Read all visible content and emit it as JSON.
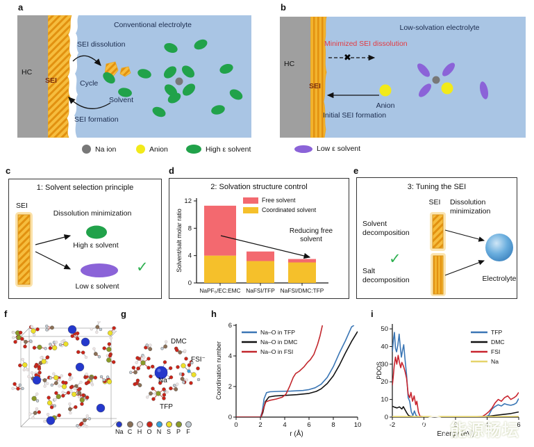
{
  "panels": {
    "a": {
      "label": "a",
      "title": "Conventional electrolyte",
      "hc": "HC",
      "sei": "SEI",
      "sei_dissolution": "SEI dissolution",
      "cycle": "Cycle",
      "solvent": "Solvent",
      "sei_formation": "SEI formation"
    },
    "b": {
      "label": "b",
      "title": "Low-solvation electrolyte",
      "hc": "HC",
      "sei": "SEI",
      "minimized": "Minimized SEI dissolution",
      "anion": "Anion",
      "initial": "Initial SEI formation",
      "cross": "✖"
    },
    "c": {
      "label": "c",
      "title": "1: Solvent selection principle",
      "sei": "SEI",
      "dissolution": "Dissolution minimization",
      "high": "High ε solvent",
      "low": "Low ε solvent",
      "check": "✓"
    },
    "d": {
      "label": "d"
    },
    "e": {
      "label": "e",
      "title": "3: Tuning the SEI",
      "sei": "SEI",
      "dissolution": "Dissolution minimization",
      "solvent_decomp": "Solvent decomposition",
      "salt_decomp": "Salt decomposition",
      "electrolyte": "Electrolyte",
      "check": "✓"
    },
    "f": {
      "label": "f"
    },
    "g": {
      "label": "g",
      "dmc": "DMC",
      "fsi": "FSI⁻",
      "na": "Na⁺",
      "tfp": "TFP",
      "atoms": [
        {
          "symbol": "Na",
          "color": "#2438cc"
        },
        {
          "symbol": "C",
          "color": "#8a6f55"
        },
        {
          "symbol": "H",
          "color": "#ece4e4"
        },
        {
          "symbol": "O",
          "color": "#cc2418"
        },
        {
          "symbol": "N",
          "color": "#35a0dc"
        },
        {
          "symbol": "S",
          "color": "#ede028"
        },
        {
          "symbol": "P",
          "color": "#8a9a28"
        },
        {
          "symbol": "F",
          "color": "#c2ccd4"
        }
      ]
    },
    "h": {
      "label": "h"
    },
    "i": {
      "label": "i"
    }
  },
  "legend_ab": {
    "items": [
      {
        "label": "Na ion",
        "color": "#787878",
        "shape": "circle"
      },
      {
        "label": "Anion",
        "color": "#f2ea1a",
        "shape": "circle"
      },
      {
        "label": "High ε solvent",
        "color": "#21a24a",
        "shape": "oval"
      },
      {
        "label": "Low ε solvent",
        "color": "#8b63d8",
        "shape": "oval2"
      }
    ]
  },
  "chart_data": [
    {
      "id": "d",
      "type": "bar",
      "title": "2: Solvation structure control",
      "ylabel": "Solvent/salt molar ratio",
      "ylim": [
        0,
        12
      ],
      "yticks": [
        0,
        4,
        8,
        12
      ],
      "categories": [
        "NaPF₆/EC:EMC",
        "NaFSI/TFP",
        "NaFSI/DMC:TFP"
      ],
      "series": [
        {
          "name": "Coordinated solvent",
          "color": "#f5c02b",
          "values": [
            4.0,
            3.2,
            3.0
          ]
        },
        {
          "name": "Free solvent",
          "color": "#f3696f",
          "values": [
            7.3,
            1.4,
            0.5
          ]
        }
      ],
      "legend": [
        {
          "label": "Free solvent",
          "color": "#f3696f"
        },
        {
          "label": "Coordinated solvent",
          "color": "#f5c02b"
        }
      ],
      "annotation": "Reducing free solvent"
    },
    {
      "id": "h",
      "type": "line",
      "xlabel": "r (Å)",
      "ylabel": "Coordination number",
      "xlim": [
        0,
        10
      ],
      "ylim": [
        0,
        6
      ],
      "xticks": [
        0,
        2,
        4,
        6,
        8,
        10
      ],
      "yticks": [
        0,
        2,
        4,
        6
      ],
      "legend_position": "top-left",
      "series": [
        {
          "name": "Na–O in TFP",
          "color": "#3a76b5",
          "points": [
            [
              0,
              0
            ],
            [
              2.0,
              0
            ],
            [
              2.15,
              0.35
            ],
            [
              2.3,
              1.2
            ],
            [
              2.5,
              1.6
            ],
            [
              2.8,
              1.66
            ],
            [
              3.5,
              1.68
            ],
            [
              4.5,
              1.7
            ],
            [
              5.5,
              1.74
            ],
            [
              6.0,
              1.8
            ],
            [
              6.5,
              1.92
            ],
            [
              7.0,
              2.15
            ],
            [
              7.5,
              2.6
            ],
            [
              8.0,
              3.3
            ],
            [
              8.5,
              4.2
            ],
            [
              9.0,
              5.0
            ],
            [
              9.5,
              5.9
            ],
            [
              9.7,
              6.0
            ]
          ]
        },
        {
          "name": "Na–O in DMC",
          "color": "#111111",
          "points": [
            [
              0,
              0
            ],
            [
              2.05,
              0
            ],
            [
              2.2,
              0.3
            ],
            [
              2.4,
              1.0
            ],
            [
              2.7,
              1.32
            ],
            [
              3.2,
              1.38
            ],
            [
              4.0,
              1.42
            ],
            [
              5.0,
              1.47
            ],
            [
              6.0,
              1.55
            ],
            [
              6.6,
              1.68
            ],
            [
              7.0,
              1.85
            ],
            [
              7.5,
              2.2
            ],
            [
              8.0,
              2.7
            ],
            [
              8.5,
              3.4
            ],
            [
              9.0,
              4.2
            ],
            [
              9.5,
              4.95
            ],
            [
              10,
              5.6
            ]
          ]
        },
        {
          "name": "Na–O in FSI",
          "color": "#c2262c",
          "points": [
            [
              0,
              0
            ],
            [
              2.05,
              0
            ],
            [
              2.2,
              0.45
            ],
            [
              2.45,
              1.0
            ],
            [
              2.8,
              1.1
            ],
            [
              3.3,
              1.18
            ],
            [
              3.8,
              1.3
            ],
            [
              4.1,
              1.5
            ],
            [
              4.4,
              2.0
            ],
            [
              4.7,
              2.6
            ],
            [
              4.9,
              2.85
            ],
            [
              5.2,
              3.0
            ],
            [
              5.6,
              3.3
            ],
            [
              5.9,
              3.6
            ],
            [
              6.1,
              3.75
            ],
            [
              6.4,
              4.1
            ],
            [
              6.7,
              4.75
            ],
            [
              6.9,
              5.3
            ],
            [
              7.1,
              6.0
            ]
          ]
        }
      ]
    },
    {
      "id": "i",
      "type": "line",
      "xlabel": "Energy (eV)",
      "ylabel": "PDOS",
      "xlim": [
        -2,
        6
      ],
      "ylim": [
        0,
        52
      ],
      "xticks": [
        -2,
        0,
        2,
        4,
        6
      ],
      "yticks": [
        0,
        10,
        20,
        30,
        40,
        50
      ],
      "legend_position": "top-right",
      "series": [
        {
          "name": "TFP",
          "color": "#3a76b5",
          "points": [
            [
              -2,
              37
            ],
            [
              -1.93,
              44
            ],
            [
              -1.87,
              48
            ],
            [
              -1.8,
              39
            ],
            [
              -1.73,
              37
            ],
            [
              -1.65,
              41
            ],
            [
              -1.57,
              47
            ],
            [
              -1.5,
              40
            ],
            [
              -1.43,
              34
            ],
            [
              -1.35,
              38
            ],
            [
              -1.28,
              41
            ],
            [
              -1.2,
              33
            ],
            [
              -1.1,
              24
            ],
            [
              -1.0,
              11
            ],
            [
              -0.9,
              9
            ],
            [
              -0.8,
              3
            ],
            [
              -0.7,
              1
            ],
            [
              -0.6,
              3.5
            ],
            [
              -0.5,
              1
            ],
            [
              -0.4,
              0.3
            ],
            [
              0,
              0.2
            ],
            [
              1,
              0.2
            ],
            [
              2,
              0.2
            ],
            [
              3,
              0.2
            ],
            [
              3.9,
              0.3
            ],
            [
              4.1,
              1
            ],
            [
              4.3,
              4.5
            ],
            [
              4.5,
              6
            ],
            [
              4.7,
              7
            ],
            [
              4.9,
              6.3
            ],
            [
              5.1,
              7.6
            ],
            [
              5.3,
              7
            ],
            [
              5.5,
              6.7
            ],
            [
              5.7,
              7.2
            ],
            [
              5.85,
              8
            ],
            [
              6,
              10.5
            ]
          ]
        },
        {
          "name": "DMC",
          "color": "#111111",
          "points": [
            [
              -2,
              6.2
            ],
            [
              -1.85,
              5.6
            ],
            [
              -1.7,
              5.2
            ],
            [
              -1.55,
              5.8
            ],
            [
              -1.4,
              4.6
            ],
            [
              -1.3,
              5.9
            ],
            [
              -1.2,
              4.2
            ],
            [
              -1.1,
              2.6
            ],
            [
              -1.0,
              1.2
            ],
            [
              -0.9,
              0.6
            ],
            [
              -0.7,
              0.3
            ],
            [
              0,
              0.15
            ],
            [
              1,
              0.15
            ],
            [
              2,
              0.15
            ],
            [
              3,
              0.2
            ],
            [
              4,
              0.4
            ],
            [
              4.5,
              1.0
            ],
            [
              5,
              1.5
            ],
            [
              5.5,
              2.0
            ],
            [
              6,
              2.9
            ]
          ]
        },
        {
          "name": "FSI",
          "color": "#c8242e",
          "points": [
            [
              -2,
              18
            ],
            [
              -1.95,
              22
            ],
            [
              -1.88,
              29
            ],
            [
              -1.8,
              34
            ],
            [
              -1.72,
              30
            ],
            [
              -1.63,
              35
            ],
            [
              -1.55,
              31
            ],
            [
              -1.47,
              28
            ],
            [
              -1.4,
              31
            ],
            [
              -1.3,
              29
            ],
            [
              -1.2,
              26
            ],
            [
              -1.1,
              22
            ],
            [
              -1.0,
              13
            ],
            [
              -0.9,
              11
            ],
            [
              -0.82,
              14
            ],
            [
              -0.72,
              9
            ],
            [
              -0.62,
              12
            ],
            [
              -0.52,
              7
            ],
            [
              -0.45,
              9
            ],
            [
              -0.35,
              3
            ],
            [
              -0.25,
              0.5
            ],
            [
              0,
              0.2
            ],
            [
              1,
              0.2
            ],
            [
              2,
              0.2
            ],
            [
              3,
              0.2
            ],
            [
              3.7,
              0.4
            ],
            [
              3.9,
              1.5
            ],
            [
              4.1,
              3
            ],
            [
              4.3,
              5
            ],
            [
              4.5,
              8
            ],
            [
              4.7,
              10
            ],
            [
              4.9,
              9
            ],
            [
              5.1,
              11
            ],
            [
              5.3,
              12
            ],
            [
              5.5,
              10
            ],
            [
              5.7,
              11
            ],
            [
              5.85,
              12
            ],
            [
              6,
              14
            ]
          ]
        },
        {
          "name": "Na",
          "color": "#e5d36a",
          "points": [
            [
              -2,
              0.3
            ],
            [
              0,
              0.3
            ],
            [
              2,
              0.3
            ],
            [
              4,
              0.3
            ],
            [
              6,
              0.4
            ]
          ]
        }
      ]
    }
  ],
  "watermark": {
    "text": "能源畅坛"
  },
  "colors": {
    "background_blue": "#a9c5e4",
    "hc_gray": "#9f9f9f",
    "sei_gold": "#f6bd3e",
    "sei_stripe": "#e29110",
    "navy_text": "#1b2b4d",
    "red_text": "#e23b42",
    "high_solvent_green": "#21a24a",
    "low_solvent_purple": "#8b63d8",
    "anion_yellow": "#f2ea1a",
    "na_ion_gray": "#787878",
    "check_green": "#2eb050"
  }
}
